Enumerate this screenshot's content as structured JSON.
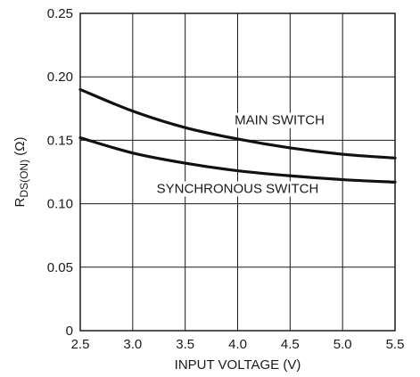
{
  "chart_data": {
    "type": "line",
    "xlabel": "INPUT VOLTAGE (V)",
    "ylabel_main": "R",
    "ylabel_sub": "DS(ON)",
    "ylabel_unit": " (Ω)",
    "xlim": [
      2.5,
      5.5
    ],
    "ylim": [
      0,
      0.25
    ],
    "x_ticks": [
      2.5,
      3.0,
      3.5,
      4.0,
      4.5,
      5.0,
      5.5
    ],
    "x_tick_labels": [
      "2.5",
      "3.0",
      "3.5",
      "4.0",
      "4.5",
      "5.0",
      "5.5"
    ],
    "y_ticks": [
      0,
      0.05,
      0.1,
      0.15,
      0.2,
      0.25
    ],
    "y_tick_labels": [
      "0",
      "0.05",
      "0.10",
      "0.15",
      "0.20",
      "0.25"
    ],
    "grid": true,
    "series": [
      {
        "name": "MAIN SWITCH",
        "x": [
          2.5,
          3.0,
          3.5,
          4.0,
          4.5,
          5.0,
          5.5
        ],
        "values": [
          0.19,
          0.173,
          0.16,
          0.151,
          0.144,
          0.139,
          0.136
        ]
      },
      {
        "name": "SYNCHRONOUS SWITCH",
        "x": [
          2.5,
          3.0,
          3.5,
          4.0,
          4.5,
          5.0,
          5.5
        ],
        "values": [
          0.152,
          0.14,
          0.132,
          0.126,
          0.122,
          0.119,
          0.117
        ]
      }
    ]
  }
}
